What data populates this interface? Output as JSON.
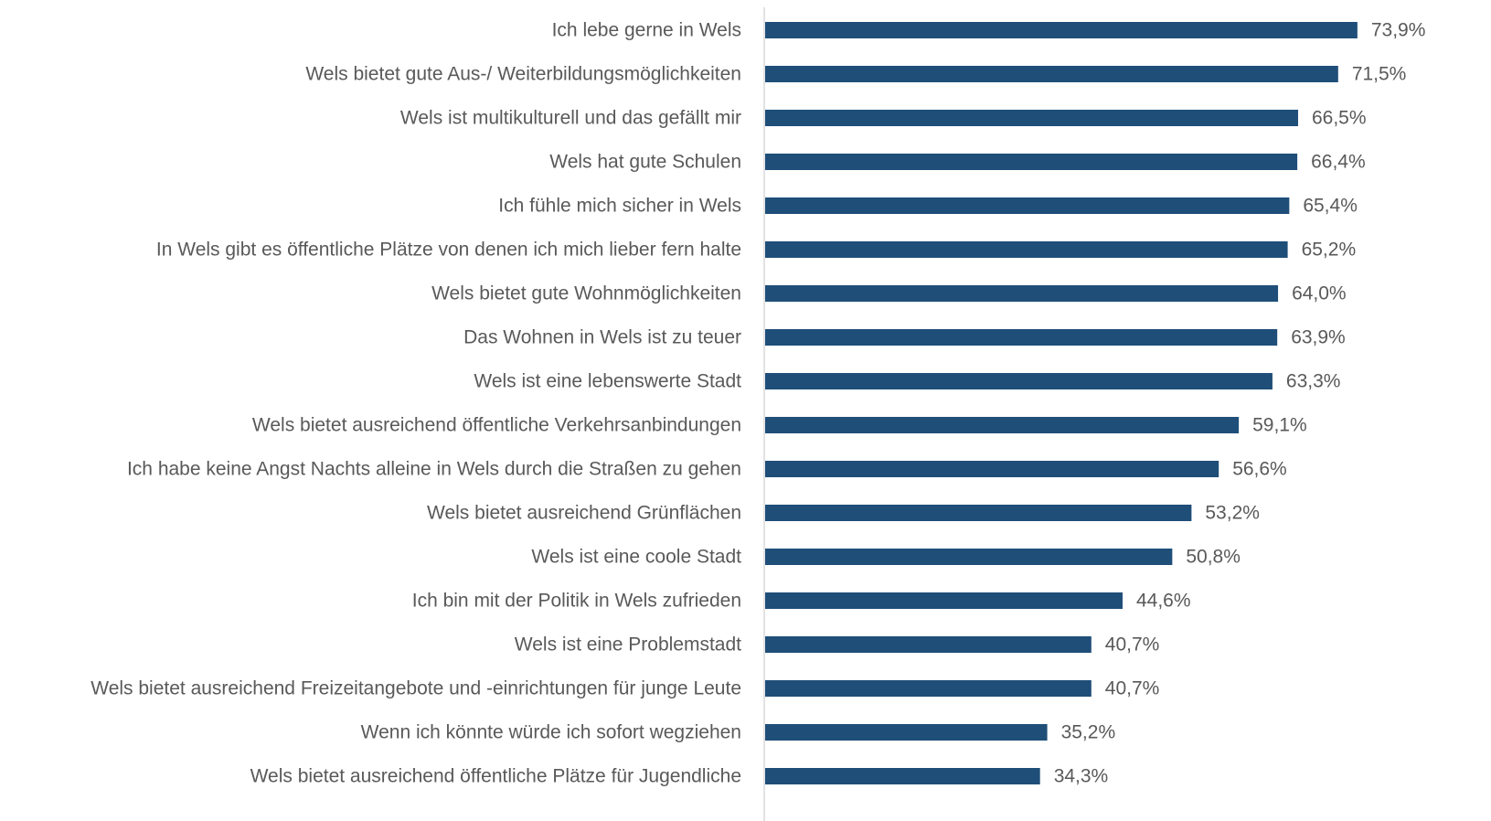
{
  "chart_data": {
    "type": "barh",
    "categories": [
      "Ich lebe gerne in Wels",
      "Wels bietet gute Aus-/ Weiterbildungsmöglichkeiten",
      "Wels ist multikulturell und das gefällt mir",
      "Wels hat gute Schulen",
      "Ich fühle mich sicher in Wels",
      "In Wels gibt es öffentliche Plätze von denen ich mich lieber fern halte",
      "Wels bietet gute Wohnmöglichkeiten",
      "Das Wohnen in Wels ist zu teuer",
      "Wels ist eine lebenswerte Stadt",
      "Wels bietet ausreichend öffentliche Verkehrsanbindungen",
      "Ich habe keine Angst Nachts alleine in Wels durch die Straßen zu gehen",
      "Wels bietet ausreichend Grünflächen",
      "Wels ist eine coole Stadt",
      "Ich bin mit der Politik in Wels zufrieden",
      "Wels ist eine Problemstadt",
      "Wels bietet ausreichend Freizeitangebote und -einrichtungen für junge Leute",
      "Wenn ich könnte würde ich sofort wegziehen",
      "Wels bietet ausreichend öffentliche Plätze für Jugendliche"
    ],
    "values": [
      73.9,
      71.5,
      66.5,
      66.4,
      65.4,
      65.2,
      64.0,
      63.9,
      63.3,
      59.1,
      56.6,
      53.2,
      50.8,
      44.6,
      40.7,
      40.7,
      35.2,
      34.3
    ],
    "value_labels": [
      "73,9%",
      "71,5%",
      "66,5%",
      "66,4%",
      "65,4%",
      "65,2%",
      "64,0%",
      "63,9%",
      "63,3%",
      "59,1%",
      "56,6%",
      "53,2%",
      "50,8%",
      "44,6%",
      "40,7%",
      "40,7%",
      "35,2%",
      "34,3%"
    ],
    "color": "#1f4e79",
    "xlim": [
      0,
      90
    ]
  }
}
